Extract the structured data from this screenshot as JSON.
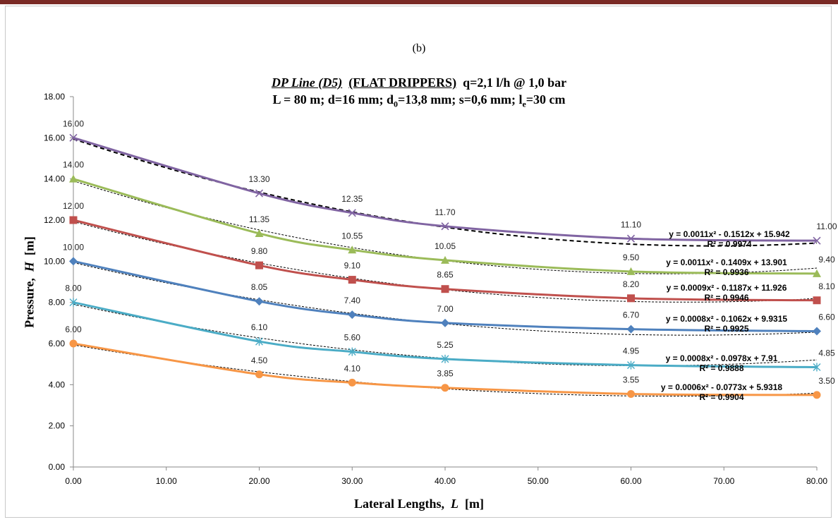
{
  "panel_label": "(b)",
  "chart_data": {
    "type": "line",
    "title_parts": {
      "italic": "DP Line (D5)",
      "underlined": "(FLAT DRIPPERS)",
      "rest": "q=2,1 l/h @ 1,0 bar"
    },
    "subtitle_parts": {
      "a": "L = 80 m; d=16 mm; d",
      "b": "0",
      "c": "=13,8 mm; s=0,6 mm; l",
      "d": "e",
      "e": "=30 cm"
    },
    "ylabel_parts": {
      "text": "Pressure,",
      "symbol": "H",
      "unit": "[m]"
    },
    "xlabel_parts": {
      "text": "Lateral Lengths,",
      "symbol": "L",
      "unit": "[m]"
    },
    "x": [
      0,
      20,
      30,
      40,
      60,
      80
    ],
    "x_ticks": [
      "0.00",
      "10.00",
      "20.00",
      "30.00",
      "40.00",
      "50.00",
      "60.00",
      "70.00",
      "80.00"
    ],
    "y_ticks": [
      "0.00",
      "2.00",
      "4.00",
      "6.00",
      "8.00",
      "10.00",
      "12.00",
      "14.00",
      "16.00",
      "18.00"
    ],
    "xlim": [
      0,
      80
    ],
    "ylim": [
      0,
      18
    ],
    "grid": false,
    "series": [
      {
        "values": [
          16.0,
          13.3,
          12.35,
          11.7,
          11.1,
          11.0
        ],
        "labels": [
          "16.00",
          "13.30",
          "12.35",
          "11.70",
          "11.10",
          "11.00"
        ],
        "color": "#8064a2",
        "marker": "x",
        "trend": {
          "a": 0.0011,
          "b": -0.1512,
          "c": 15.942,
          "equation": "y = 0.0011x² - 0.1512x + 15.942",
          "r2": "R² = 0.9974",
          "style": "bold-dash"
        }
      },
      {
        "values": [
          14.0,
          11.35,
          10.55,
          10.05,
          9.5,
          9.4
        ],
        "labels": [
          "14.00",
          "11.35",
          "10.55",
          "10.05",
          "9.50",
          "9.40"
        ],
        "color": "#9bbb59",
        "marker": "triangle",
        "trend": {
          "a": 0.0011,
          "b": -0.1409,
          "c": 13.901,
          "equation": "y = 0.0011x² - 0.1409x + 13.901",
          "r2": "R² = 0.9936",
          "style": "dot"
        }
      },
      {
        "values": [
          12.0,
          9.8,
          9.1,
          8.65,
          8.2,
          8.1
        ],
        "labels": [
          "12.00",
          "9.80",
          "9.10",
          "8.65",
          "8.20",
          "8.10"
        ],
        "color": "#c0504d",
        "marker": "square",
        "trend": {
          "a": 0.0009,
          "b": -0.1187,
          "c": 11.926,
          "equation": "y = 0.0009x² - 0.1187x + 11.926",
          "r2": "R² = 0.9946",
          "style": "dot"
        }
      },
      {
        "values": [
          10.0,
          8.05,
          7.4,
          7.0,
          6.7,
          6.6
        ],
        "labels": [
          "10.00",
          "8.05",
          "7.40",
          "7.00",
          "6.70",
          "6.60"
        ],
        "color": "#4f81bd",
        "marker": "diamond",
        "trend": {
          "a": 0.0008,
          "b": -0.1062,
          "c": 9.9315,
          "equation": "y = 0.0008x² - 0.1062x + 9.9315",
          "r2": "R² = 0.9925",
          "style": "dot"
        }
      },
      {
        "values": [
          8.0,
          6.1,
          5.6,
          5.25,
          4.95,
          4.85
        ],
        "labels": [
          "8.00",
          "6.10",
          "5.60",
          "5.25",
          "4.95",
          "4.85"
        ],
        "color": "#4bacc6",
        "marker": "star",
        "trend": {
          "a": 0.0008,
          "b": -0.0978,
          "c": 7.91,
          "equation": "y = 0.0008x² - 0.0978x + 7.91",
          "r2": "R² = 0.9888",
          "style": "dot"
        }
      },
      {
        "values": [
          6.0,
          4.5,
          4.1,
          3.85,
          3.55,
          3.5
        ],
        "labels": [
          "6.00",
          "4.50",
          "4.10",
          "3.85",
          "3.55",
          "3.50"
        ],
        "color": "#f79646",
        "marker": "circle",
        "trend": {
          "a": 0.0006,
          "b": -0.0773,
          "c": 5.9318,
          "equation": "y = 0.0006x² - 0.0773x + 5.9318",
          "r2": "R² = 0.9904",
          "style": "dot"
        }
      }
    ]
  }
}
